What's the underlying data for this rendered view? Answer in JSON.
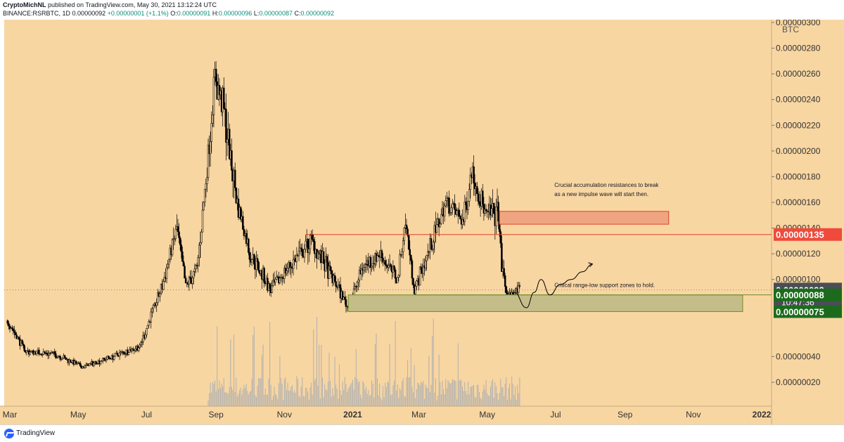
{
  "header": {
    "publisher": "CryptoMichNL",
    "published": "published on TradingView.com, May 30, 2021 13:12:24 UTC",
    "symbol": "BINANCE:RSRBTC, 1D",
    "last": "0.00000092",
    "change": "+0.00000001 (+1.1%)",
    "o_label": "O:",
    "o_value": "0.00000091",
    "h_label": "H:",
    "h_value": "0.00000096",
    "l_label": "L:",
    "l_value": "0.00000087",
    "c_label": "C:",
    "c_value": "0.00000092"
  },
  "footer": {
    "brand": "TradingView"
  },
  "colors": {
    "background": "#f8d6a2",
    "candle": "#000000",
    "volume": "#b0b0b0",
    "resistance_zone": "#f0a582",
    "support_zone": "#c4bd8a",
    "resistance_line": "#e0412c",
    "support_line": "#6b8e23",
    "last_price_label": "#4a4e57",
    "red_label": "#ef4a3c",
    "green_label": "#1c6b1c"
  },
  "chart_data": {
    "type": "candlestick",
    "unit": "BTC",
    "ylim": [
      0.0,
      3.1e-06
    ],
    "ytick_labels": [
      "0.00000300",
      "0.00000280",
      "0.00000260",
      "0.00000240",
      "0.00000220",
      "0.00000200",
      "0.00000180",
      "0.00000160",
      "0.00000140",
      "0.00000120",
      "0.00000100",
      "0.00000040",
      "0.00000020"
    ],
    "xtick_labels": [
      "Mar",
      "May",
      "Jul",
      "Sep",
      "Nov",
      "2021",
      "Mar",
      "May",
      "Jul",
      "Sep",
      "Nov",
      "2022"
    ],
    "price_waypoints": [
      {
        "date": "2020-02-28",
        "price": 6.8e-07
      },
      {
        "date": "2020-03-15",
        "price": 4.4e-07
      },
      {
        "date": "2020-04-10",
        "price": 4.2e-07
      },
      {
        "date": "2020-05-05",
        "price": 3.2e-07
      },
      {
        "date": "2020-06-01",
        "price": 4e-07
      },
      {
        "date": "2020-06-25",
        "price": 4.8e-07
      },
      {
        "date": "2020-07-15",
        "price": 9.5e-07
      },
      {
        "date": "2020-07-28",
        "price": 1.4e-06
      },
      {
        "date": "2020-08-05",
        "price": 9.5e-07
      },
      {
        "date": "2020-08-15",
        "price": 1.08e-06
      },
      {
        "date": "2020-08-25",
        "price": 1.95e-06
      },
      {
        "date": "2020-08-31",
        "price": 2.6e-06
      },
      {
        "date": "2020-09-08",
        "price": 2.3e-06
      },
      {
        "date": "2020-09-20",
        "price": 1.6e-06
      },
      {
        "date": "2020-10-01",
        "price": 1.2e-06
      },
      {
        "date": "2020-10-20",
        "price": 9.2e-07
      },
      {
        "date": "2020-11-05",
        "price": 1.1e-06
      },
      {
        "date": "2020-11-25",
        "price": 1.3e-06
      },
      {
        "date": "2020-12-15",
        "price": 1e-06
      },
      {
        "date": "2020-12-28",
        "price": 7.8e-07
      },
      {
        "date": "2021-01-10",
        "price": 1.1e-06
      },
      {
        "date": "2021-01-25",
        "price": 1.2e-06
      },
      {
        "date": "2021-02-10",
        "price": 1e-06
      },
      {
        "date": "2021-02-17",
        "price": 1.45e-06
      },
      {
        "date": "2021-02-25",
        "price": 9.2e-07
      },
      {
        "date": "2021-03-10",
        "price": 1.22e-06
      },
      {
        "date": "2021-03-25",
        "price": 1.6e-06
      },
      {
        "date": "2021-04-10",
        "price": 1.45e-06
      },
      {
        "date": "2021-04-17",
        "price": 1.85e-06
      },
      {
        "date": "2021-04-30",
        "price": 1.5e-06
      },
      {
        "date": "2021-05-11",
        "price": 1.52e-06
      },
      {
        "date": "2021-05-14",
        "price": 1.1e-06
      },
      {
        "date": "2021-05-19",
        "price": 8.5e-07
      },
      {
        "date": "2021-05-30",
        "price": 9.2e-07
      }
    ],
    "horizontal_levels": [
      {
        "value": 1.35e-06,
        "label": "0.00000135",
        "start": "2020-11-20",
        "kind": "resistance"
      },
      {
        "value": 9.2e-07,
        "label": "0.00000092",
        "kind": "last"
      },
      {
        "value": 8.8e-07,
        "label": "0.00000088",
        "start": "2021-02-25",
        "kind": "support"
      },
      {
        "value": 7.5e-07,
        "label": "0.00000075",
        "kind": "support"
      }
    ],
    "last_price_countdown": "10:47:36",
    "zones": [
      {
        "kind": "resistance",
        "start": "2021-05-12",
        "end": "2021-10-10",
        "top": 1.53e-06,
        "bottom": 1.43e-06
      },
      {
        "kind": "support",
        "start": "2020-12-28",
        "end": "2021-12-15",
        "top": 8.8e-07,
        "bottom": 7.5e-07
      }
    ],
    "projection_path": [
      {
        "date": "2021-05-25",
        "price": 9e-07
      },
      {
        "date": "2021-06-05",
        "price": 7.8e-07
      },
      {
        "date": "2021-06-12",
        "price": 9e-07
      },
      {
        "date": "2021-06-18",
        "price": 1e-06
      },
      {
        "date": "2021-06-26",
        "price": 8.8e-07
      },
      {
        "date": "2021-07-05",
        "price": 9.6e-07
      },
      {
        "date": "2021-07-15",
        "price": 1e-06
      },
      {
        "date": "2021-07-25",
        "price": 1.06e-06
      },
      {
        "date": "2021-08-03",
        "price": 1.12e-06
      }
    ],
    "annotations": [
      {
        "text": "Crucial accumulation resistances to break",
        "date": "2021-06-30",
        "price": 1.72e-06
      },
      {
        "text": "as a new impulse wave will start then.",
        "date": "2021-06-30",
        "price": 1.65e-06
      },
      {
        "text": "Critical range-low support zones to hold.",
        "date": "2021-06-30",
        "price": 9.4e-07
      }
    ]
  }
}
